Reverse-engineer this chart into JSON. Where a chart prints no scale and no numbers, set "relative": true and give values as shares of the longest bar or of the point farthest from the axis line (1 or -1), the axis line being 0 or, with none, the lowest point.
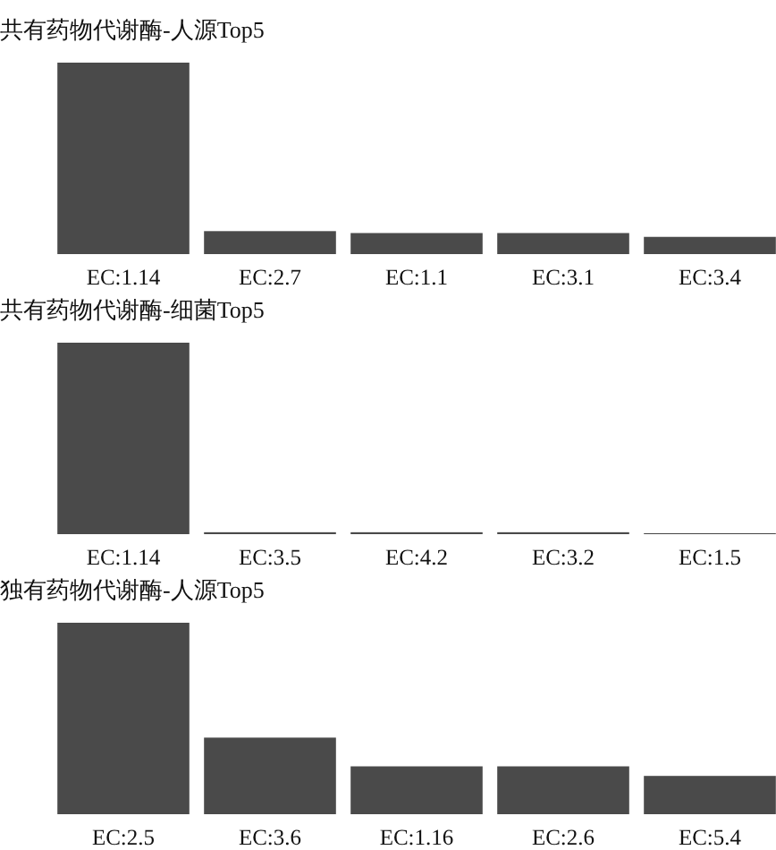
{
  "chart_data": [
    {
      "type": "bar",
      "title": "共有药物代谢酶-人源Top5",
      "relative": true,
      "categories": [
        "EC:1.14",
        "EC:2.7",
        "EC:1.1",
        "EC:3.1",
        "EC:3.4"
      ],
      "values": [
        1,
        0.12,
        0.11,
        0.11,
        0.09
      ],
      "color": "#4a4a4a"
    },
    {
      "type": "bar",
      "title": "共有药物代谢酶-细菌Top5",
      "relative": true,
      "categories": [
        "EC:1.14",
        "EC:3.5",
        "EC:4.2",
        "EC:3.2",
        "EC:1.5"
      ],
      "values": [
        1,
        0.01,
        0.01,
        0.01,
        0.005
      ],
      "color": "#4a4a4a"
    },
    {
      "type": "bar",
      "title": "独有药物代谢酶-人源Top5",
      "relative": true,
      "categories": [
        "EC:2.5",
        "EC:3.6",
        "EC:1.16",
        "EC:2.6",
        "EC:5.4"
      ],
      "values": [
        1,
        0.4,
        0.25,
        0.25,
        0.2
      ],
      "color": "#4a4a4a"
    }
  ]
}
